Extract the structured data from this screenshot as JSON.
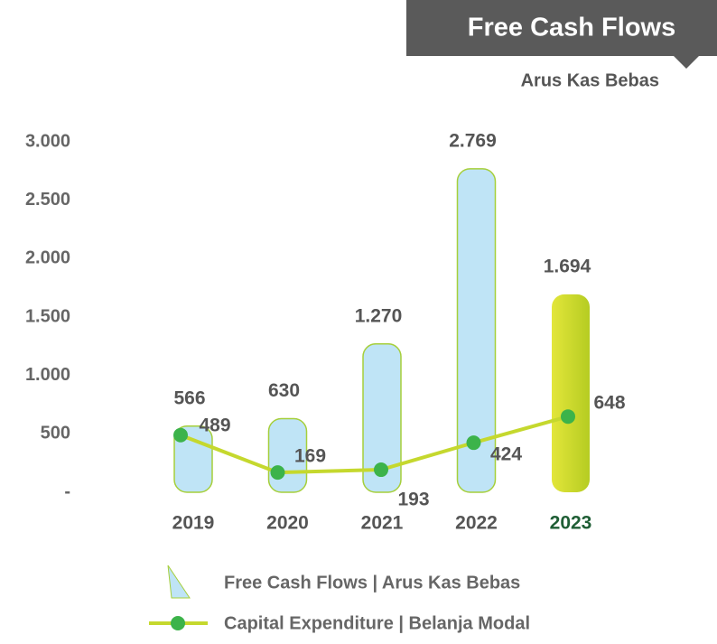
{
  "chart_data": {
    "type": "bar_line",
    "title": "Free Cash Flows",
    "subtitle": "Arus Kas Bebas",
    "categories": [
      "2019",
      "2020",
      "2021",
      "2022",
      "2023"
    ],
    "category_colors": [
      "#555555",
      "#555555",
      "#555555",
      "#555555",
      "#1f5e35"
    ],
    "series": [
      {
        "name": "Free Cash Flows | Arus Kas Bebas",
        "type": "bar",
        "color": "#bfe4f6",
        "colors": [
          "#bfe4f6",
          "#bfe4f6",
          "#bfe4f6",
          "#bfe4f6",
          "#cfd92a"
        ],
        "values": [
          566,
          630,
          1270,
          2769,
          1694
        ],
        "value_labels": [
          "566",
          "630",
          "1.270",
          "2.769",
          "1.694"
        ]
      },
      {
        "name": "Capital Expenditure | Belanja Modal",
        "type": "line",
        "color": "#c5d82e",
        "marker_color": "#3cb34a",
        "values": [
          489,
          169,
          193,
          424,
          648
        ]
      }
    ],
    "ylim": [
      0,
      3000
    ],
    "yticks": [
      {
        "value": 0,
        "label": "-"
      },
      500,
      {
        "value": 1000,
        "label": "1.000"
      },
      {
        "value": 1500,
        "label": "1.500"
      },
      {
        "value": 2000,
        "label": "2.000"
      },
      {
        "value": 2500,
        "label": "2.500"
      },
      {
        "value": 3000,
        "label": "3.000"
      }
    ]
  }
}
